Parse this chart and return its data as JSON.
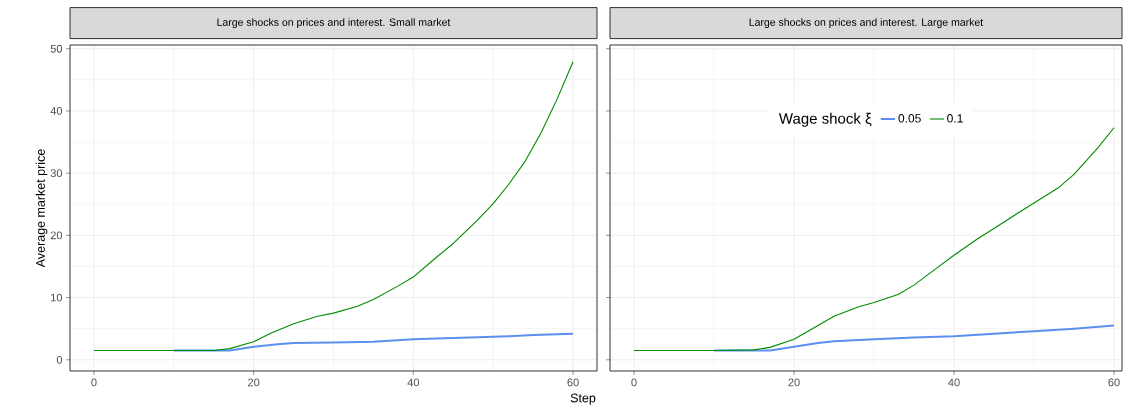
{
  "chart_data": [
    {
      "type": "line",
      "title": "Large shocks on prices and interest. Small market",
      "xlabel": "Step",
      "ylabel": "Average market price",
      "xlim": [
        -3,
        63
      ],
      "ylim": [
        -1.8,
        50.6
      ],
      "xticks": [
        0,
        20,
        40,
        60
      ],
      "yticks": [
        0,
        10,
        20,
        30,
        40,
        50
      ],
      "grid": true,
      "legend": false,
      "series": [
        {
          "color": "#5b8ff0",
          "x": [
            10,
            15,
            17,
            20,
            23,
            25,
            30,
            35,
            40,
            45,
            50,
            52,
            55,
            60
          ],
          "values": [
            1.5,
            1.5,
            1.5,
            2.1,
            2.5,
            2.7,
            2.8,
            2.9,
            3.3,
            3.5,
            3.7,
            3.8,
            4.0,
            4.2
          ]
        },
        {
          "color": "#008b00",
          "x": [
            0,
            5,
            10,
            15,
            17,
            20,
            22,
            25,
            28,
            30,
            33,
            35,
            38,
            40,
            43,
            45,
            48,
            50,
            52,
            54,
            56,
            58,
            60
          ],
          "values": [
            1.5,
            1.5,
            1.5,
            1.5,
            1.8,
            2.9,
            4.2,
            5.8,
            7.0,
            7.5,
            8.6,
            9.7,
            11.8,
            13.3,
            16.6,
            18.7,
            22.4,
            25.1,
            28.3,
            31.9,
            36.5,
            41.9,
            47.9
          ]
        }
      ]
    },
    {
      "type": "line",
      "title": "Large shocks on prices and interest. Large market",
      "legend_title": "Wage shock ξ",
      "xlim": [
        -3,
        61
      ],
      "ylim": [
        -1.8,
        50.6
      ],
      "xticks": [
        0,
        20,
        40,
        60
      ],
      "yticks": [
        0,
        10,
        20,
        30,
        40,
        50
      ],
      "tick_labels": "x",
      "grid": true,
      "legend": "top",
      "series": [
        {
          "name": "0.05",
          "color": "#5b8ff0",
          "x": [
            10,
            15,
            17,
            20,
            23,
            25,
            30,
            35,
            40,
            45,
            50,
            55,
            60
          ],
          "values": [
            1.5,
            1.5,
            1.5,
            2.1,
            2.7,
            3.0,
            3.3,
            3.6,
            3.8,
            4.2,
            4.6,
            5.0,
            5.5
          ]
        },
        {
          "name": "0.1",
          "color": "#008b00",
          "x": [
            0,
            5,
            10,
            15,
            17,
            20,
            23,
            25,
            28,
            30,
            33,
            35,
            38,
            40,
            43,
            45,
            48,
            50,
            53,
            55,
            58,
            60
          ],
          "values": [
            1.5,
            1.5,
            1.5,
            1.6,
            2.0,
            3.3,
            5.5,
            7.0,
            8.5,
            9.2,
            10.5,
            12.0,
            14.9,
            16.8,
            19.5,
            21.1,
            23.6,
            25.2,
            27.6,
            29.8,
            34.1,
            37.3
          ]
        }
      ]
    }
  ]
}
